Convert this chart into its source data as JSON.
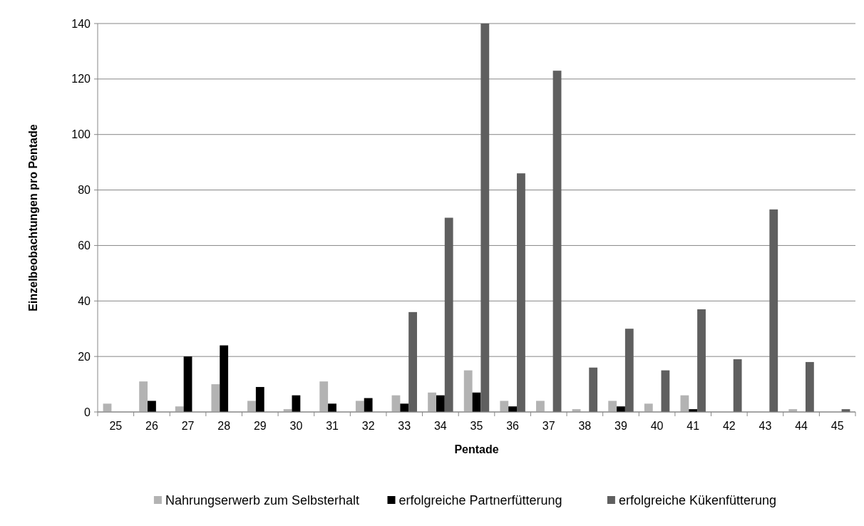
{
  "chart_data": {
    "type": "bar",
    "xlabel": "Pentade",
    "ylabel": "Einzelbeobachtungen pro Pentade",
    "categories": [
      "25",
      "26",
      "27",
      "28",
      "29",
      "30",
      "31",
      "32",
      "33",
      "34",
      "35",
      "36",
      "37",
      "38",
      "39",
      "40",
      "41",
      "42",
      "43",
      "44",
      "45"
    ],
    "series": [
      {
        "name": "Nahrungserwerb zum Selbsterhalt",
        "color": "#b3b3b3",
        "values": [
          3,
          11,
          2,
          10,
          4,
          1,
          11,
          4,
          6,
          7,
          15,
          4,
          4,
          1,
          4,
          3,
          6,
          0,
          0,
          1,
          0
        ]
      },
      {
        "name": "erfolgreiche Partnerfütterung",
        "color": "#000000",
        "values": [
          0,
          4,
          20,
          24,
          9,
          6,
          3,
          5,
          3,
          6,
          7,
          2,
          0,
          0,
          2,
          0,
          1,
          0,
          0,
          0,
          0
        ]
      },
      {
        "name": "erfolgreiche Kükenfütterung",
        "color": "#5f5f5f",
        "values": [
          0,
          0,
          0,
          0,
          0,
          0,
          0,
          0,
          36,
          70,
          140,
          86,
          123,
          16,
          30,
          15,
          37,
          19,
          73,
          18,
          1
        ]
      }
    ],
    "ylim": [
      0,
      140
    ],
    "yticks": [
      0,
      20,
      40,
      60,
      80,
      100,
      120,
      140
    ],
    "grid": "y",
    "legend": "bottom"
  }
}
